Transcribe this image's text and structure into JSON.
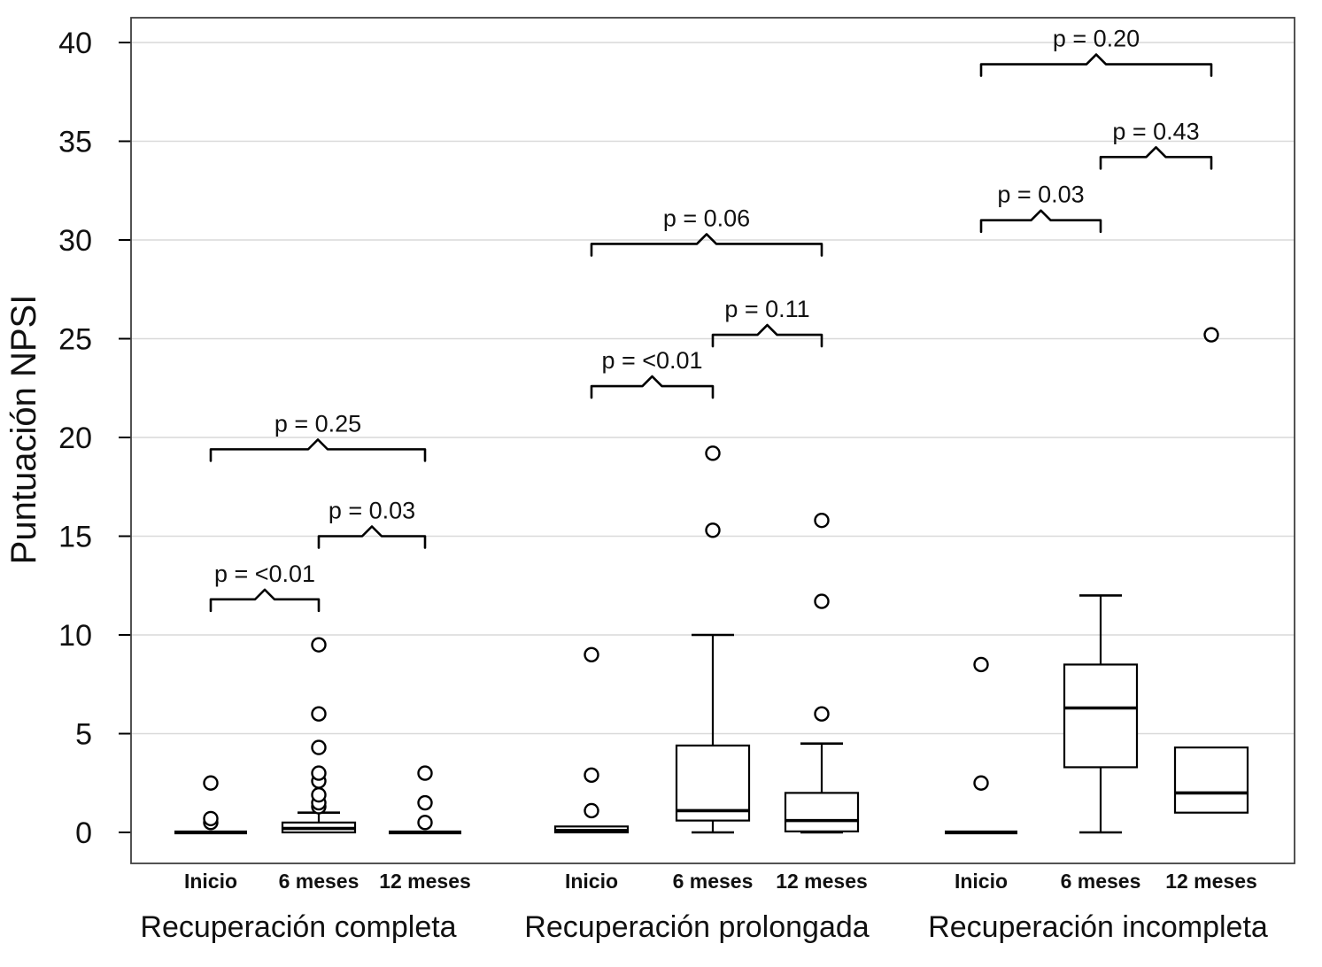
{
  "figure": {
    "description": "Box plot figure of NPSI scores over time for three recovery groups"
  },
  "chart_data": {
    "type": "box",
    "title": "",
    "xlabel": "",
    "ylabel": "Puntuación NPSI",
    "ylim": [
      0,
      41.3
    ],
    "yticks": [
      0,
      5,
      10,
      15,
      20,
      25,
      30,
      35,
      40
    ],
    "grid": true,
    "grid_color": "#d9d9d9",
    "x_tick_labels": [
      "Inicio",
      "6 meses",
      "12 meses"
    ],
    "groups": [
      {
        "label": "Recuperación completa",
        "boxes": [
          {
            "label": "Inicio",
            "q1": 0,
            "median": 0,
            "q3": 0,
            "whisker_low": 0,
            "whisker_high": 0,
            "outliers": [
              0.5,
              0.7,
              2.5
            ]
          },
          {
            "label": "6 meses",
            "q1": 0,
            "median": 0.2,
            "q3": 0.5,
            "whisker_low": 0,
            "whisker_high": 1.0,
            "outliers": [
              1.3,
              1.5,
              1.9,
              2.6,
              3.0,
              4.3,
              6.0,
              9.5
            ]
          },
          {
            "label": "12 meses",
            "q1": 0,
            "median": 0,
            "q3": 0,
            "whisker_low": 0,
            "whisker_high": 0,
            "outliers": [
              0.5,
              1.5,
              3.0
            ]
          }
        ],
        "comparisons": [
          {
            "a": 0,
            "b": 1,
            "label": "p = <0.01",
            "y": 11.8
          },
          {
            "a": 1,
            "b": 2,
            "label": "p = 0.03",
            "y": 15.0
          },
          {
            "a": 0,
            "b": 2,
            "label": "p = 0.25",
            "y": 19.4
          }
        ]
      },
      {
        "label": "Recuperación prolongada",
        "boxes": [
          {
            "label": "Inicio",
            "q1": 0,
            "median": 0.1,
            "q3": 0.3,
            "whisker_low": 0,
            "whisker_high": 0.3,
            "outliers": [
              1.1,
              2.9,
              9.0
            ]
          },
          {
            "label": "6 meses",
            "q1": 0.6,
            "median": 1.1,
            "q3": 4.4,
            "whisker_low": 0,
            "whisker_high": 10.0,
            "outliers": [
              15.3,
              19.2
            ]
          },
          {
            "label": "12 meses",
            "q1": 0.05,
            "median": 0.6,
            "q3": 2.0,
            "whisker_low": 0,
            "whisker_high": 4.5,
            "outliers": [
              6.0,
              11.7,
              15.8
            ]
          }
        ],
        "comparisons": [
          {
            "a": 0,
            "b": 1,
            "label": "p = <0.01",
            "y": 22.6
          },
          {
            "a": 1,
            "b": 2,
            "label": "p = 0.11",
            "y": 25.2
          },
          {
            "a": 0,
            "b": 2,
            "label": "p = 0.06",
            "y": 29.8
          }
        ]
      },
      {
        "label": "Recuperación incompleta",
        "boxes": [
          {
            "label": "Inicio",
            "q1": 0,
            "median": 0,
            "q3": 0,
            "whisker_low": 0,
            "whisker_high": 0,
            "outliers": [
              2.5,
              8.5
            ]
          },
          {
            "label": "6 meses",
            "q1": 3.3,
            "median": 6.3,
            "q3": 8.5,
            "whisker_low": 0,
            "whisker_high": 12.0,
            "outliers": []
          },
          {
            "label": "12 meses",
            "q1": 1.0,
            "median": 2.0,
            "q3": 4.3,
            "whisker_low": 1.0,
            "whisker_high": 4.3,
            "outliers": [
              25.2
            ]
          }
        ],
        "comparisons": [
          {
            "a": 0,
            "b": 1,
            "label": "p = 0.03",
            "y": 31.0
          },
          {
            "a": 1,
            "b": 2,
            "label": "p = 0.43",
            "y": 34.2
          },
          {
            "a": 0,
            "b": 2,
            "label": "p = 0.20",
            "y": 38.9
          }
        ]
      }
    ]
  }
}
